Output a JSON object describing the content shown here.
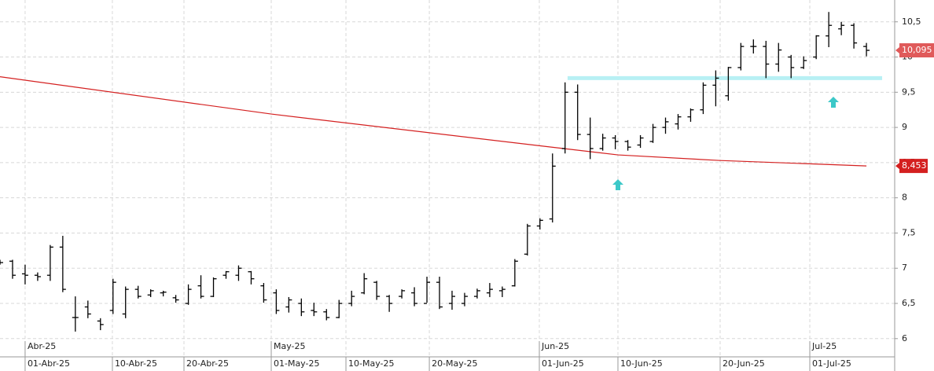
{
  "chart_data": {
    "type": "ohlc",
    "color": "#000000",
    "x": [
      -2,
      -1,
      0,
      1,
      2,
      3,
      4,
      5,
      6,
      7,
      8,
      9,
      10,
      11,
      12,
      13,
      14,
      15,
      16,
      17,
      18,
      19,
      20,
      21,
      22,
      23,
      24,
      25,
      26,
      27,
      28,
      29,
      30,
      31,
      32,
      33,
      34,
      35,
      36,
      37,
      38,
      39,
      40,
      41,
      42,
      43,
      44,
      45,
      46,
      47,
      48,
      49,
      50,
      51,
      52,
      53,
      54,
      55,
      56,
      57,
      58,
      59,
      60,
      61,
      62,
      63,
      64,
      65,
      66,
      67
    ],
    "open": [
      7.1,
      7.1,
      6.92,
      6.9,
      6.9,
      7.3,
      6.3,
      6.45,
      6.25,
      6.4,
      6.35,
      6.7,
      6.62,
      6.65,
      6.58,
      6.5,
      6.75,
      6.6,
      6.9,
      6.9,
      6.95,
      6.75,
      6.65,
      6.45,
      6.5,
      6.4,
      6.38,
      6.3,
      6.5,
      6.65,
      6.8,
      6.6,
      6.6,
      6.65,
      6.5,
      6.8,
      6.5,
      6.5,
      6.6,
      6.65,
      6.68,
      6.75,
      7.2,
      7.6,
      7.7,
      8.7,
      9.5,
      8.9,
      8.7,
      8.85,
      8.8,
      8.75,
      8.8,
      9.0,
      9.05,
      9.15,
      9.25,
      9.6,
      9.45,
      9.85,
      10.15,
      10.15,
      9.9,
      10.0,
      9.85,
      10.0,
      10.3,
      10.4,
      10.45,
      10.15
    ],
    "high": [
      7.12,
      7.12,
      7.05,
      6.94,
      7.33,
      7.46,
      6.6,
      6.54,
      6.29,
      6.85,
      6.74,
      6.75,
      6.7,
      6.68,
      6.62,
      6.77,
      6.9,
      6.87,
      6.96,
      7.04,
      6.96,
      6.79,
      6.7,
      6.59,
      6.57,
      6.51,
      6.42,
      6.55,
      6.68,
      6.93,
      6.82,
      6.62,
      6.7,
      6.73,
      6.88,
      6.88,
      6.68,
      6.65,
      6.71,
      6.79,
      6.74,
      7.13,
      7.63,
      7.71,
      8.63,
      9.64,
      9.61,
      9.14,
      8.91,
      8.89,
      8.82,
      8.89,
      9.05,
      9.14,
      9.19,
      9.27,
      9.64,
      9.81,
      9.86,
      10.2,
      10.25,
      10.23,
      10.2,
      10.03,
      10.01,
      10.31,
      10.64,
      10.5,
      10.48,
      10.2
    ],
    "low": [
      7.05,
      6.85,
      6.77,
      6.82,
      6.82,
      6.66,
      6.1,
      6.29,
      6.12,
      6.35,
      6.29,
      6.57,
      6.59,
      6.6,
      6.51,
      6.48,
      6.57,
      6.59,
      6.85,
      6.82,
      6.77,
      6.51,
      6.35,
      6.37,
      6.32,
      6.32,
      6.26,
      6.29,
      6.46,
      6.63,
      6.55,
      6.38,
      6.57,
      6.46,
      6.51,
      6.42,
      6.41,
      6.46,
      6.57,
      6.59,
      6.59,
      6.74,
      7.18,
      7.55,
      7.65,
      8.63,
      8.82,
      8.55,
      8.67,
      8.69,
      8.67,
      8.71,
      8.78,
      8.91,
      8.97,
      9.08,
      9.19,
      9.3,
      9.38,
      9.81,
      10.05,
      9.7,
      9.79,
      9.7,
      9.83,
      9.97,
      10.14,
      10.31,
      10.12,
      10.01
    ],
    "close": [
      7.08,
      6.9,
      6.9,
      6.88,
      7.3,
      6.7,
      6.3,
      6.35,
      6.2,
      6.8,
      6.7,
      6.6,
      6.68,
      6.66,
      6.55,
      6.7,
      6.6,
      6.85,
      6.95,
      7.0,
      6.85,
      6.55,
      6.4,
      6.55,
      6.38,
      6.38,
      6.3,
      6.5,
      6.6,
      6.85,
      6.6,
      6.5,
      6.68,
      6.5,
      6.8,
      6.45,
      6.6,
      6.6,
      6.68,
      6.7,
      6.7,
      7.1,
      7.6,
      7.68,
      8.45,
      9.5,
      8.9,
      8.7,
      8.85,
      8.8,
      8.72,
      8.85,
      9.0,
      9.08,
      9.15,
      9.25,
      9.6,
      9.7,
      9.85,
      10.15,
      10.15,
      9.9,
      10.1,
      9.85,
      9.95,
      10.3,
      10.45,
      10.45,
      10.2,
      10.095
    ],
    "last_price": {
      "value": 10.095,
      "label": "10,095",
      "color": "#e05a5a"
    },
    "moving_average": {
      "color": "#d42020",
      "x": [
        -2,
        19.6,
        40.95,
        47.21,
        55.35,
        67
      ],
      "values": [
        9.72,
        9.19,
        8.74,
        8.61,
        8.53,
        8.453
      ],
      "last_label": {
        "value": 8.453,
        "label": "8,453"
      }
    },
    "level_line": {
      "color": "#b8f0f4",
      "value": 9.7,
      "x": [
        43.2,
        68.25
      ]
    },
    "xlim": [
      -2.0,
      69.25
    ],
    "ylim": [
      5.54,
      10.81
    ],
    "yticks": [
      6,
      {
        "value": 6.5,
        "label": "6,5"
      },
      7,
      {
        "value": 7.5,
        "label": "7,5"
      },
      8,
      {
        "value": 8.5,
        "label": "8,5"
      },
      9,
      {
        "value": 9.5,
        "label": "9,5"
      },
      10,
      {
        "value": 10.5,
        "label": "10,5"
      }
    ],
    "xticks": [
      {
        "value": 0,
        "label": "01-Abr-25"
      },
      {
        "value": 6.95,
        "label": "10-Abr-25"
      },
      {
        "value": 12.65,
        "label": "20-Abr-25"
      },
      {
        "value": 19.6,
        "label": "01-May-25"
      },
      {
        "value": 25.55,
        "label": "10-May-25"
      },
      {
        "value": 32.19,
        "label": "20-May-25"
      },
      {
        "value": 40.95,
        "label": "01-Jun-25"
      },
      {
        "value": 47.21,
        "label": "10-Jun-25"
      },
      {
        "value": 55.35,
        "label": "20-Jun-25"
      },
      {
        "value": 62.49,
        "label": "01-Jul-25"
      }
    ],
    "month_ticks": [
      {
        "value": 0,
        "label": "Abr-25"
      },
      {
        "value": 19.6,
        "label": "May-25"
      },
      {
        "value": 40.95,
        "label": "Jun-25"
      },
      {
        "value": 62.49,
        "label": "Jul-25"
      }
    ],
    "grid": true
  }
}
